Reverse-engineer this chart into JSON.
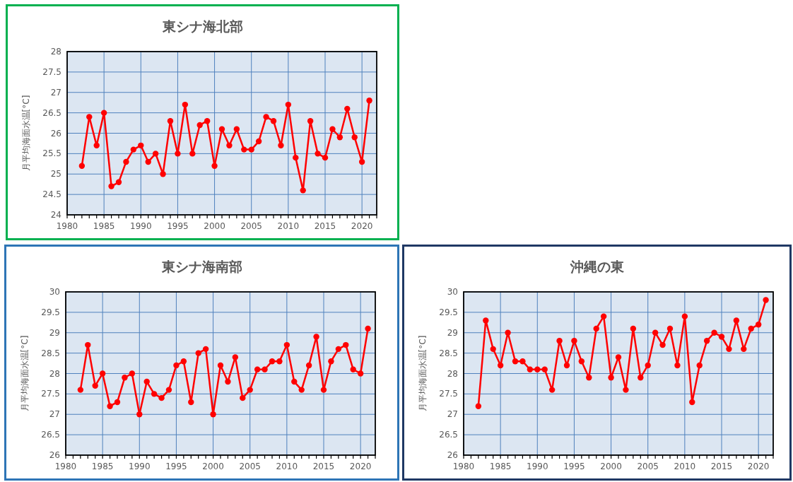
{
  "chart_data": [
    {
      "type": "line",
      "title": "東シナ海北部",
      "ylabel": "月平均海面水温[°C]",
      "x": [
        1982,
        1983,
        1984,
        1985,
        1986,
        1987,
        1988,
        1989,
        1990,
        1991,
        1992,
        1993,
        1994,
        1995,
        1996,
        1997,
        1998,
        1999,
        2000,
        2001,
        2002,
        2003,
        2004,
        2005,
        2006,
        2007,
        2008,
        2009,
        2010,
        2011,
        2012,
        2013,
        2014,
        2015,
        2016,
        2017,
        2018,
        2019,
        2020,
        2021
      ],
      "series": [
        {
          "color": "#ff0000",
          "values": [
            25.2,
            26.4,
            25.7,
            26.5,
            24.7,
            24.8,
            25.3,
            25.6,
            25.7,
            25.3,
            25.5,
            25.0,
            26.3,
            25.5,
            26.7,
            25.5,
            26.2,
            26.3,
            25.2,
            26.1,
            25.7,
            26.1,
            25.6,
            25.6,
            25.8,
            26.4,
            26.3,
            25.7,
            26.7,
            25.4,
            24.6,
            26.3,
            25.5,
            25.4,
            26.1,
            25.9,
            26.6,
            25.9,
            25.3,
            26.8
          ]
        }
      ],
      "xlim": [
        1980,
        2022
      ],
      "xticks": [
        1980,
        {
          "value": 1981,
          "label": null
        },
        {
          "value": 1982,
          "label": null
        },
        {
          "value": 1983,
          "label": null
        },
        {
          "value": 1984,
          "label": null
        },
        1985,
        {
          "value": 1986,
          "label": null
        },
        {
          "value": 1987,
          "label": null
        },
        {
          "value": 1988,
          "label": null
        },
        {
          "value": 1989,
          "label": null
        },
        1990,
        {
          "value": 1991,
          "label": null
        },
        {
          "value": 1992,
          "label": null
        },
        {
          "value": 1993,
          "label": null
        },
        {
          "value": 1994,
          "label": null
        },
        1995,
        {
          "value": 1996,
          "label": null
        },
        {
          "value": 1997,
          "label": null
        },
        {
          "value": 1998,
          "label": null
        },
        {
          "value": 1999,
          "label": null
        },
        2000,
        {
          "value": 2001,
          "label": null
        },
        {
          "value": 2002,
          "label": null
        },
        {
          "value": 2003,
          "label": null
        },
        {
          "value": 2004,
          "label": null
        },
        2005,
        {
          "value": 2006,
          "label": null
        },
        {
          "value": 2007,
          "label": null
        },
        {
          "value": 2008,
          "label": null
        },
        {
          "value": 2009,
          "label": null
        },
        2010,
        {
          "value": 2011,
          "label": null
        },
        {
          "value": 2012,
          "label": null
        },
        {
          "value": 2013,
          "label": null
        },
        {
          "value": 2014,
          "label": null
        },
        2015,
        {
          "value": 2016,
          "label": null
        },
        {
          "value": 2017,
          "label": null
        },
        {
          "value": 2018,
          "label": null
        },
        {
          "value": 2019,
          "label": null
        },
        2020,
        {
          "value": 2021,
          "label": null
        },
        {
          "value": 2022,
          "label": null
        }
      ],
      "ylim": [
        24,
        28
      ],
      "yticks": [
        24,
        24.5,
        25,
        25.5,
        26,
        26.5,
        27,
        27.5,
        28
      ],
      "grid": true,
      "marker": "circle",
      "line_style": "solid"
    },
    {
      "type": "line",
      "title": "東シナ海南部",
      "ylabel": "月平均海面水温[°C]",
      "x": [
        1982,
        1983,
        1984,
        1985,
        1986,
        1987,
        1988,
        1989,
        1990,
        1991,
        1992,
        1993,
        1994,
        1995,
        1996,
        1997,
        1998,
        1999,
        2000,
        2001,
        2002,
        2003,
        2004,
        2005,
        2006,
        2007,
        2008,
        2009,
        2010,
        2011,
        2012,
        2013,
        2014,
        2015,
        2016,
        2017,
        2018,
        2019,
        2020,
        2021
      ],
      "series": [
        {
          "color": "#ff0000",
          "values": [
            27.6,
            28.7,
            27.7,
            28.0,
            27.2,
            27.3,
            27.9,
            28.0,
            27.0,
            27.8,
            27.5,
            27.4,
            27.6,
            28.2,
            28.3,
            27.3,
            28.5,
            28.6,
            27.0,
            28.2,
            27.8,
            28.4,
            27.4,
            27.6,
            28.1,
            28.1,
            28.3,
            28.3,
            28.7,
            27.8,
            27.6,
            28.2,
            28.9,
            27.6,
            28.3,
            28.6,
            28.7,
            28.1,
            28.0,
            29.1
          ]
        }
      ],
      "xlim": [
        1980,
        2022
      ],
      "xticks": [
        1980,
        {
          "value": 1981,
          "label": null
        },
        {
          "value": 1982,
          "label": null
        },
        {
          "value": 1983,
          "label": null
        },
        {
          "value": 1984,
          "label": null
        },
        1985,
        {
          "value": 1986,
          "label": null
        },
        {
          "value": 1987,
          "label": null
        },
        {
          "value": 1988,
          "label": null
        },
        {
          "value": 1989,
          "label": null
        },
        1990,
        {
          "value": 1991,
          "label": null
        },
        {
          "value": 1992,
          "label": null
        },
        {
          "value": 1993,
          "label": null
        },
        {
          "value": 1994,
          "label": null
        },
        1995,
        {
          "value": 1996,
          "label": null
        },
        {
          "value": 1997,
          "label": null
        },
        {
          "value": 1998,
          "label": null
        },
        {
          "value": 1999,
          "label": null
        },
        2000,
        {
          "value": 2001,
          "label": null
        },
        {
          "value": 2002,
          "label": null
        },
        {
          "value": 2003,
          "label": null
        },
        {
          "value": 2004,
          "label": null
        },
        2005,
        {
          "value": 2006,
          "label": null
        },
        {
          "value": 2007,
          "label": null
        },
        {
          "value": 2008,
          "label": null
        },
        {
          "value": 2009,
          "label": null
        },
        2010,
        {
          "value": 2011,
          "label": null
        },
        {
          "value": 2012,
          "label": null
        },
        {
          "value": 2013,
          "label": null
        },
        {
          "value": 2014,
          "label": null
        },
        2015,
        {
          "value": 2016,
          "label": null
        },
        {
          "value": 2017,
          "label": null
        },
        {
          "value": 2018,
          "label": null
        },
        {
          "value": 2019,
          "label": null
        },
        2020,
        {
          "value": 2021,
          "label": null
        },
        {
          "value": 2022,
          "label": null
        }
      ],
      "ylim": [
        26,
        30
      ],
      "yticks": [
        26,
        26.5,
        27,
        27.5,
        28,
        28.5,
        29,
        29.5,
        30
      ],
      "grid": true,
      "marker": "circle",
      "line_style": "solid"
    },
    {
      "type": "line",
      "title": "沖縄の東",
      "ylabel": "月平均海面水温[°C]",
      "x": [
        1982,
        1983,
        1984,
        1985,
        1986,
        1987,
        1988,
        1989,
        1990,
        1991,
        1992,
        1993,
        1994,
        1995,
        1996,
        1997,
        1998,
        1999,
        2000,
        2001,
        2002,
        2003,
        2004,
        2005,
        2006,
        2007,
        2008,
        2009,
        2010,
        2011,
        2012,
        2013,
        2014,
        2015,
        2016,
        2017,
        2018,
        2019,
        2020,
        2021
      ],
      "series": [
        {
          "color": "#ff0000",
          "values": [
            27.2,
            29.3,
            28.6,
            28.2,
            29.0,
            28.3,
            28.3,
            28.1,
            28.1,
            28.1,
            27.6,
            28.8,
            28.2,
            28.8,
            28.3,
            27.9,
            29.1,
            29.4,
            27.9,
            28.4,
            27.6,
            29.1,
            27.9,
            28.2,
            29.0,
            28.7,
            29.1,
            28.2,
            29.4,
            27.3,
            28.2,
            28.8,
            29.0,
            28.9,
            28.6,
            29.3,
            28.6,
            29.1,
            29.2,
            29.8
          ]
        }
      ],
      "xlim": [
        1980,
        2022
      ],
      "xticks": [
        1980,
        {
          "value": 1981,
          "label": null
        },
        {
          "value": 1982,
          "label": null
        },
        {
          "value": 1983,
          "label": null
        },
        {
          "value": 1984,
          "label": null
        },
        1985,
        {
          "value": 1986,
          "label": null
        },
        {
          "value": 1987,
          "label": null
        },
        {
          "value": 1988,
          "label": null
        },
        {
          "value": 1989,
          "label": null
        },
        1990,
        {
          "value": 1991,
          "label": null
        },
        {
          "value": 1992,
          "label": null
        },
        {
          "value": 1993,
          "label": null
        },
        {
          "value": 1994,
          "label": null
        },
        1995,
        {
          "value": 1996,
          "label": null
        },
        {
          "value": 1997,
          "label": null
        },
        {
          "value": 1998,
          "label": null
        },
        {
          "value": 1999,
          "label": null
        },
        2000,
        {
          "value": 2001,
          "label": null
        },
        {
          "value": 2002,
          "label": null
        },
        {
          "value": 2003,
          "label": null
        },
        {
          "value": 2004,
          "label": null
        },
        2005,
        {
          "value": 2006,
          "label": null
        },
        {
          "value": 2007,
          "label": null
        },
        {
          "value": 2008,
          "label": null
        },
        {
          "value": 2009,
          "label": null
        },
        2010,
        {
          "value": 2011,
          "label": null
        },
        {
          "value": 2012,
          "label": null
        },
        {
          "value": 2013,
          "label": null
        },
        {
          "value": 2014,
          "label": null
        },
        2015,
        {
          "value": 2016,
          "label": null
        },
        {
          "value": 2017,
          "label": null
        },
        {
          "value": 2018,
          "label": null
        },
        {
          "value": 2019,
          "label": null
        },
        2020,
        {
          "value": 2021,
          "label": null
        },
        {
          "value": 2022,
          "label": null
        }
      ],
      "ylim": [
        26,
        30
      ],
      "yticks": [
        26,
        26.5,
        27,
        27.5,
        28,
        28.5,
        29,
        29.5,
        30
      ],
      "grid": true,
      "marker": "circle",
      "line_style": "solid"
    }
  ]
}
